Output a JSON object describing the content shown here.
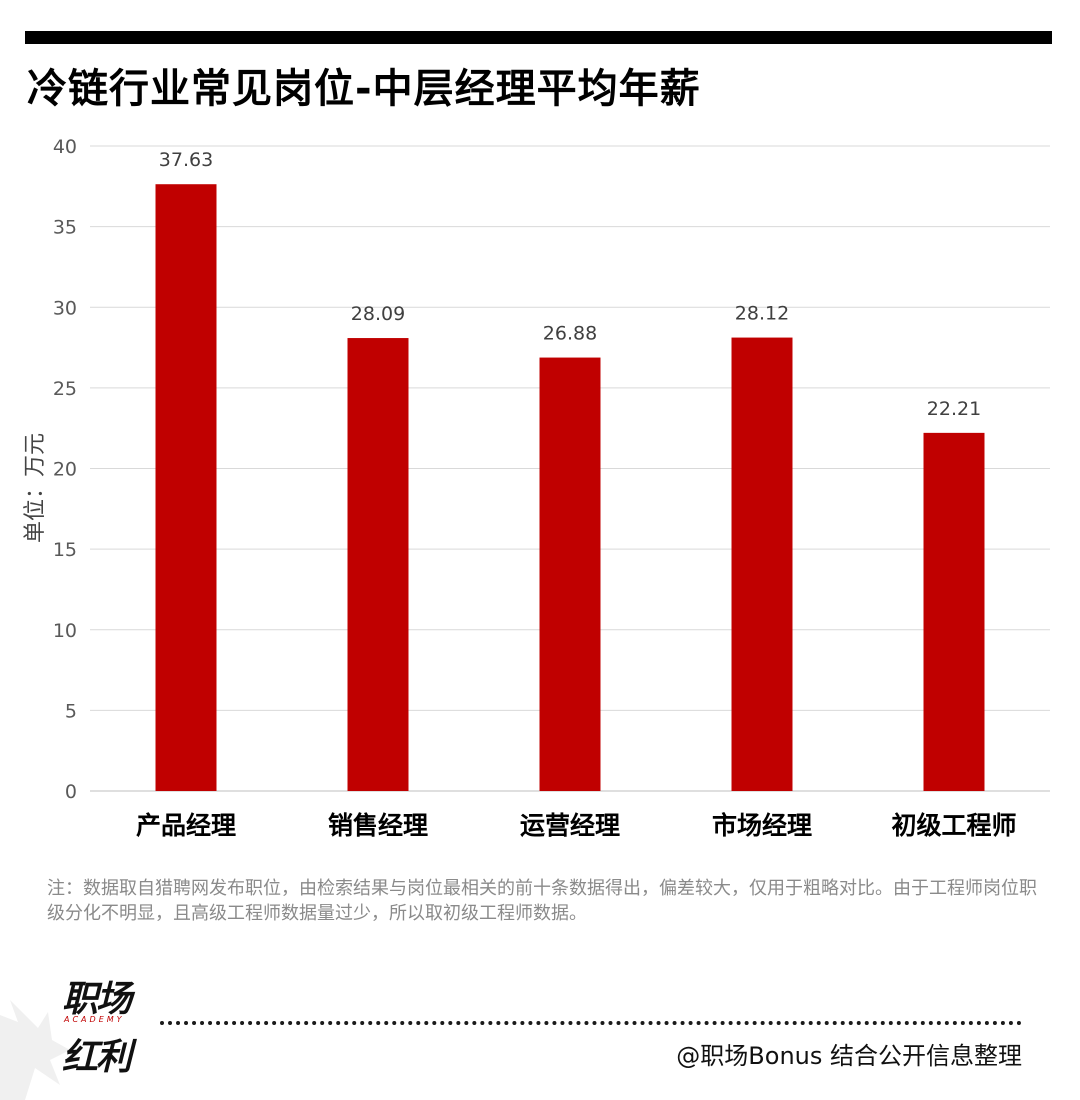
{
  "title": "冷链行业常见岗位-中层经理平均年薪",
  "chart_data": {
    "type": "bar",
    "categories": [
      "产品经理",
      "销售经理",
      "运营经理",
      "市场经理",
      "初级工程师"
    ],
    "values": [
      37.63,
      28.09,
      26.88,
      28.12,
      22.21
    ],
    "value_labels": [
      "37.63",
      "28.09",
      "26.88",
      "28.12",
      "22.21"
    ],
    "ylabel": "单位：万元",
    "ylim": [
      0,
      40
    ],
    "yticks": [
      0,
      5,
      10,
      15,
      20,
      25,
      30,
      35,
      40
    ],
    "grid": true,
    "bar_color": "#c00000"
  },
  "note": "注：数据取自猎聘网发布职位，由检索结果与岗位最相关的前十条数据得出，偏差较大，仅用于粗略对比。由于工程师岗位职级分化不明显，且高级工程师数据量过少，所以取初级工程师数据。",
  "logo": {
    "top": "职场",
    "bottom": "红利",
    "sub": "ACADEMY"
  },
  "credit": "@职场Bonus 结合公开信息整理"
}
